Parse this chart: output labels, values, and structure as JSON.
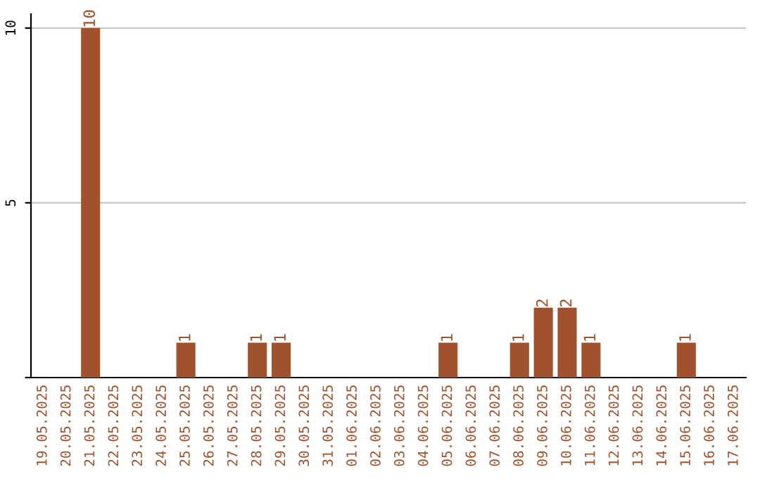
{
  "chart_data": {
    "type": "bar",
    "categories": [
      "19.05.2025",
      "20.05.2025",
      "21.05.2025",
      "22.05.2025",
      "23.05.2025",
      "24.05.2025",
      "25.05.2025",
      "26.05.2025",
      "27.05.2025",
      "28.05.2025",
      "29.05.2025",
      "30.05.2025",
      "31.05.2025",
      "01.06.2025",
      "02.06.2025",
      "03.06.2025",
      "04.06.2025",
      "05.06.2025",
      "06.06.2025",
      "07.06.2025",
      "08.06.2025",
      "09.06.2025",
      "10.06.2025",
      "11.06.2025",
      "12.06.2025",
      "13.06.2025",
      "14.06.2025",
      "15.06.2025",
      "16.06.2025",
      "17.06.2025"
    ],
    "values": [
      0,
      0,
      10,
      0,
      0,
      0,
      1,
      0,
      0,
      1,
      1,
      0,
      0,
      0,
      0,
      0,
      0,
      1,
      0,
      0,
      1,
      2,
      2,
      1,
      0,
      0,
      0,
      1,
      0,
      0
    ],
    "value_labels": [
      null,
      null,
      "10",
      null,
      null,
      null,
      "1",
      null,
      null,
      "1",
      "1",
      null,
      null,
      null,
      null,
      null,
      null,
      "1",
      null,
      null,
      "1",
      "2",
      "2",
      "1",
      null,
      null,
      null,
      "1",
      null,
      null
    ],
    "color": "#a0522d",
    "ylim": [
      0,
      10.4
    ],
    "yticks": [
      {
        "value": 0,
        "label": null
      },
      5,
      10
    ],
    "grid": "y"
  }
}
